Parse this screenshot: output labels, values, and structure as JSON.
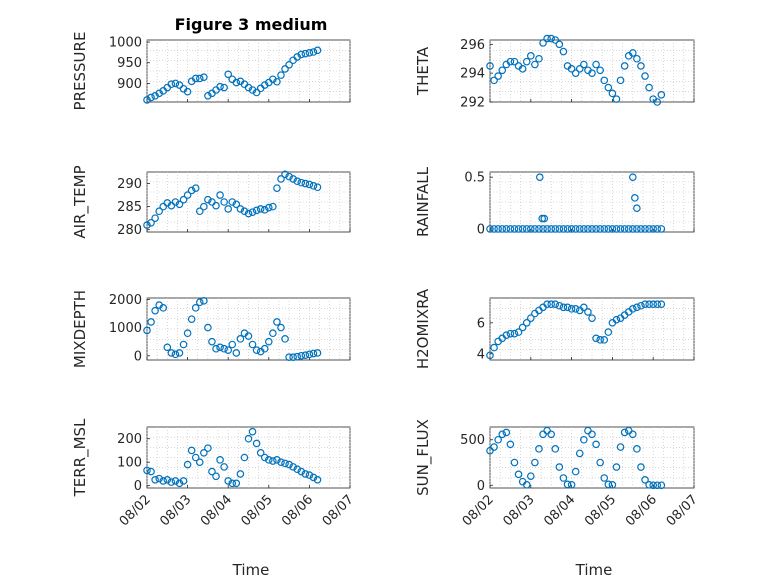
{
  "figure": {
    "title": "Figure 3 medium"
  },
  "colors": {
    "marker": "#0072BD",
    "axis": "#262626",
    "grid": "#bfbfbf"
  },
  "xaxis": {
    "label": "Time",
    "ticks": [
      "08/02",
      "08/03",
      "08/04",
      "08/05",
      "08/06",
      "08/07"
    ],
    "range": [
      0,
      5
    ]
  },
  "chart_data": [
    {
      "type": "scatter",
      "id": "pressure",
      "title": "Figure 3 medium",
      "ylabel": "PRESSURE",
      "ylim": [
        855,
        1005
      ],
      "yticks": [
        900,
        950,
        1000
      ],
      "x": [
        0,
        0.1,
        0.2,
        0.3,
        0.4,
        0.5,
        0.6,
        0.7,
        0.8,
        0.9,
        1.0,
        1.1,
        1.2,
        1.3,
        1.4,
        1.5,
        1.6,
        1.7,
        1.8,
        1.9,
        2.0,
        2.1,
        2.2,
        2.3,
        2.4,
        2.5,
        2.6,
        2.7,
        2.8,
        2.9,
        3.0,
        3.1,
        3.2,
        3.3,
        3.4,
        3.5,
        3.6,
        3.7,
        3.8,
        3.9,
        4.0,
        4.1,
        4.2
      ],
      "y": [
        860,
        866,
        870,
        876,
        882,
        890,
        898,
        900,
        896,
        887,
        880,
        905,
        912,
        912,
        915,
        870,
        876,
        884,
        892,
        890,
        922,
        910,
        902,
        905,
        898,
        890,
        884,
        878,
        888,
        896,
        902,
        910,
        904,
        920,
        935,
        945,
        956,
        964,
        970,
        972,
        974,
        976,
        980
      ]
    },
    {
      "type": "scatter",
      "id": "theta",
      "ylabel": "THETA",
      "ylim": [
        292,
        296.3
      ],
      "yticks": [
        292,
        294,
        296
      ],
      "x": [
        0,
        0.1,
        0.2,
        0.3,
        0.4,
        0.5,
        0.6,
        0.7,
        0.8,
        0.9,
        1.0,
        1.1,
        1.2,
        1.3,
        1.4,
        1.5,
        1.6,
        1.7,
        1.8,
        1.9,
        2.0,
        2.1,
        2.2,
        2.3,
        2.4,
        2.5,
        2.6,
        2.7,
        2.8,
        2.9,
        3.0,
        3.1,
        3.2,
        3.3,
        3.4,
        3.5,
        3.6,
        3.7,
        3.8,
        3.9,
        4.0,
        4.1,
        4.2
      ],
      "y": [
        294.5,
        293.5,
        293.8,
        294.2,
        294.6,
        294.8,
        294.8,
        294.5,
        294.3,
        294.8,
        295.2,
        294.6,
        295.0,
        296.1,
        296.4,
        296.4,
        296.3,
        296.0,
        295.5,
        294.5,
        294.3,
        294.0,
        294.3,
        294.6,
        294.2,
        294.0,
        294.6,
        294.2,
        293.5,
        293.0,
        292.6,
        292.2,
        293.5,
        294.5,
        295.2,
        295.4,
        295.0,
        294.5,
        293.8,
        293.0,
        292.2,
        292.0,
        292.5
      ]
    },
    {
      "type": "scatter",
      "id": "air_temp",
      "ylabel": "AIR_TEMP",
      "ylim": [
        279.5,
        292.5
      ],
      "yticks": [
        280,
        285,
        290
      ],
      "x": [
        0,
        0.1,
        0.2,
        0.3,
        0.4,
        0.5,
        0.6,
        0.7,
        0.8,
        0.9,
        1.0,
        1.1,
        1.2,
        1.3,
        1.4,
        1.5,
        1.6,
        1.7,
        1.8,
        1.9,
        2.0,
        2.1,
        2.2,
        2.3,
        2.4,
        2.5,
        2.6,
        2.7,
        2.8,
        2.9,
        3.0,
        3.1,
        3.2,
        3.3,
        3.4,
        3.5,
        3.6,
        3.7,
        3.8,
        3.9,
        4.0,
        4.1,
        4.2
      ],
      "y": [
        281,
        281.5,
        282.5,
        284,
        285,
        285.8,
        285.2,
        286,
        285.5,
        286.5,
        287.5,
        288.5,
        289,
        284,
        285,
        286.5,
        286,
        285.2,
        287.5,
        286,
        284.5,
        286,
        285.5,
        284.5,
        284,
        283.5,
        283.8,
        284.2,
        284.5,
        284.3,
        284.8,
        285,
        289,
        291,
        292,
        291.5,
        291,
        290.5,
        290.2,
        290,
        289.8,
        289.5,
        289.2
      ]
    },
    {
      "type": "scatter",
      "id": "rainfall",
      "ylabel": "RAINFALL",
      "ylim": [
        -0.03,
        0.55
      ],
      "yticks": [
        0,
        0.5
      ],
      "x": [
        0,
        0.1,
        0.2,
        0.3,
        0.4,
        0.5,
        0.6,
        0.7,
        0.8,
        0.9,
        1.0,
        1.1,
        1.2,
        1.3,
        1.4,
        1.5,
        1.6,
        1.7,
        1.8,
        1.9,
        2.0,
        2.1,
        2.2,
        2.3,
        2.4,
        2.5,
        2.6,
        2.7,
        2.8,
        2.9,
        3.0,
        3.1,
        3.2,
        3.3,
        3.4,
        3.5,
        3.6,
        3.7,
        3.8,
        3.9,
        4.0,
        4.1,
        4.2,
        1.22,
        1.28,
        1.33,
        3.5,
        3.55,
        3.6
      ],
      "y": [
        0,
        0,
        0,
        0,
        0,
        0,
        0,
        0,
        0,
        0,
        0,
        0,
        0,
        0,
        0,
        0,
        0,
        0,
        0,
        0,
        0,
        0,
        0,
        0,
        0,
        0,
        0,
        0,
        0,
        0,
        0,
        0,
        0,
        0,
        0,
        0,
        0,
        0,
        0,
        0,
        0,
        0,
        0,
        0.5,
        0.1,
        0.1,
        0.5,
        0.3,
        0.2
      ]
    },
    {
      "type": "scatter",
      "id": "mixdepth",
      "ylabel": "MIXDEPTH",
      "ylim": [
        -150,
        2050
      ],
      "yticks": [
        0,
        1000,
        2000
      ],
      "x": [
        0,
        0.1,
        0.2,
        0.3,
        0.4,
        0.5,
        0.6,
        0.7,
        0.8,
        0.9,
        1.0,
        1.1,
        1.2,
        1.3,
        1.4,
        1.5,
        1.6,
        1.7,
        1.8,
        1.9,
        2.0,
        2.1,
        2.2,
        2.3,
        2.4,
        2.5,
        2.6,
        2.7,
        2.8,
        2.9,
        3.0,
        3.1,
        3.2,
        3.3,
        3.4,
        3.5,
        3.6,
        3.7,
        3.8,
        3.9,
        4.0,
        4.1,
        4.2
      ],
      "y": [
        900,
        1200,
        1600,
        1800,
        1700,
        300,
        100,
        50,
        100,
        400,
        800,
        1300,
        1700,
        1900,
        1950,
        1000,
        500,
        250,
        300,
        250,
        200,
        400,
        100,
        600,
        800,
        700,
        400,
        200,
        150,
        250,
        500,
        800,
        1200,
        1000,
        600,
        -50,
        -50,
        -30,
        0,
        20,
        50,
        80,
        100
      ]
    },
    {
      "type": "scatter",
      "id": "h2omixra",
      "ylabel": "H2OMIXRA",
      "ylim": [
        3.6,
        7.6
      ],
      "yticks": [
        4,
        6
      ],
      "x": [
        0,
        0.1,
        0.2,
        0.3,
        0.4,
        0.5,
        0.6,
        0.7,
        0.8,
        0.9,
        1.0,
        1.1,
        1.2,
        1.3,
        1.4,
        1.5,
        1.6,
        1.7,
        1.8,
        1.9,
        2.0,
        2.1,
        2.2,
        2.3,
        2.4,
        2.5,
        2.6,
        2.7,
        2.8,
        2.9,
        3.0,
        3.1,
        3.2,
        3.3,
        3.4,
        3.5,
        3.6,
        3.7,
        3.8,
        3.9,
        4.0,
        4.1,
        4.2
      ],
      "y": [
        3.9,
        4.4,
        4.8,
        5.0,
        5.2,
        5.3,
        5.3,
        5.4,
        5.7,
        6.0,
        6.3,
        6.6,
        6.8,
        7.0,
        7.2,
        7.2,
        7.2,
        7.1,
        7.0,
        7.0,
        6.9,
        6.9,
        6.8,
        7.0,
        6.7,
        6.3,
        5.0,
        4.9,
        4.9,
        5.4,
        6.0,
        6.2,
        6.3,
        6.5,
        6.7,
        6.9,
        7.0,
        7.1,
        7.2,
        7.2,
        7.2,
        7.2,
        7.2
      ]
    },
    {
      "type": "scatter",
      "id": "terr_msl",
      "ylabel": "TERR_MSL",
      "ylim": [
        -10,
        250
      ],
      "yticks": [
        0,
        100,
        200
      ],
      "x": [
        0,
        0.1,
        0.2,
        0.3,
        0.4,
        0.5,
        0.6,
        0.7,
        0.8,
        0.9,
        1.0,
        1.1,
        1.2,
        1.3,
        1.4,
        1.5,
        1.6,
        1.7,
        1.8,
        1.9,
        2.0,
        2.1,
        2.2,
        2.3,
        2.4,
        2.5,
        2.6,
        2.7,
        2.8,
        2.9,
        3.0,
        3.1,
        3.2,
        3.3,
        3.4,
        3.5,
        3.6,
        3.7,
        3.8,
        3.9,
        4.0,
        4.1,
        4.2
      ],
      "y": [
        65,
        60,
        25,
        30,
        20,
        25,
        15,
        20,
        10,
        20,
        90,
        150,
        120,
        100,
        140,
        160,
        60,
        40,
        110,
        80,
        20,
        10,
        10,
        50,
        120,
        200,
        230,
        180,
        140,
        120,
        110,
        105,
        110,
        100,
        95,
        90,
        80,
        70,
        60,
        50,
        45,
        35,
        25
      ]
    },
    {
      "type": "scatter",
      "id": "sun_flux",
      "ylabel": "SUN_FLUX",
      "ylim": [
        -30,
        640
      ],
      "yticks": [
        0,
        500
      ],
      "x": [
        0,
        0.1,
        0.2,
        0.3,
        0.4,
        0.5,
        0.6,
        0.7,
        0.8,
        0.9,
        1.0,
        1.1,
        1.2,
        1.3,
        1.4,
        1.5,
        1.6,
        1.7,
        1.8,
        1.9,
        2.0,
        2.1,
        2.2,
        2.3,
        2.4,
        2.5,
        2.6,
        2.7,
        2.8,
        2.9,
        3.0,
        3.1,
        3.2,
        3.3,
        3.4,
        3.5,
        3.6,
        3.7,
        3.8,
        3.9,
        4.0,
        4.1,
        4.2
      ],
      "y": [
        380,
        420,
        500,
        560,
        580,
        450,
        250,
        120,
        40,
        5,
        100,
        250,
        400,
        560,
        600,
        560,
        400,
        200,
        80,
        10,
        5,
        150,
        350,
        500,
        600,
        560,
        450,
        250,
        80,
        10,
        5,
        200,
        420,
        580,
        600,
        560,
        400,
        200,
        60,
        5,
        0,
        0,
        0
      ]
    }
  ]
}
